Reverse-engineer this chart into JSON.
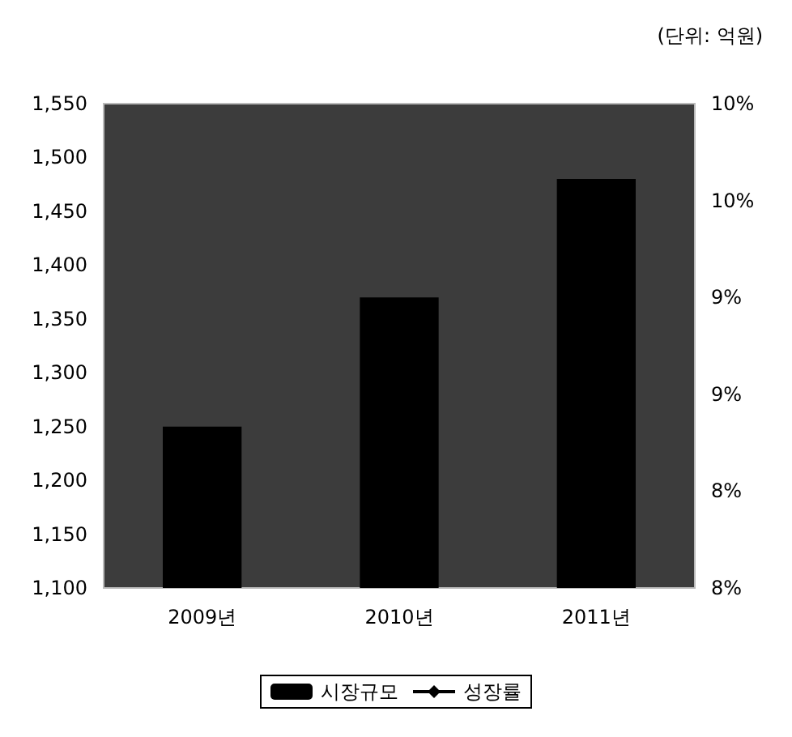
{
  "chart_data": {
    "type": "bar",
    "categories": [
      "2009년",
      "2010년",
      "2011년"
    ],
    "series": [
      {
        "name": "시장규모",
        "color": "#000000",
        "values": [
          1250,
          1370,
          1480
        ]
      },
      {
        "name": "성장률",
        "type": "line",
        "color": "#000000",
        "marker": "diamond",
        "values": [
          null,
          null,
          null
        ]
      }
    ],
    "ylim": [
      1100,
      1550
    ],
    "yticks": [
      {
        "value": 1100,
        "label": "1,100"
      },
      {
        "value": 1150,
        "label": "1,150"
      },
      {
        "value": 1200,
        "label": "1,200"
      },
      {
        "value": 1250,
        "label": "1,250"
      },
      {
        "value": 1300,
        "label": "1,300"
      },
      {
        "value": 1350,
        "label": "1,350"
      },
      {
        "value": 1400,
        "label": "1,400"
      },
      {
        "value": 1450,
        "label": "1,450"
      },
      {
        "value": 1500,
        "label": "1,500"
      },
      {
        "value": 1550,
        "label": "1,550"
      }
    ],
    "y2lim": [
      7.5,
      10
    ],
    "y2ticks": [
      {
        "value": 7.5,
        "label": "8%"
      },
      {
        "value": 8,
        "label": "8%"
      },
      {
        "value": 8.5,
        "label": "9%"
      },
      {
        "value": 9,
        "label": "9%"
      },
      {
        "value": 9.5,
        "label": "10%"
      },
      {
        "value": 10,
        "label": "10%"
      }
    ],
    "annotations": [
      "(단위: 억원)"
    ],
    "legend": "bottom",
    "grid": false
  }
}
